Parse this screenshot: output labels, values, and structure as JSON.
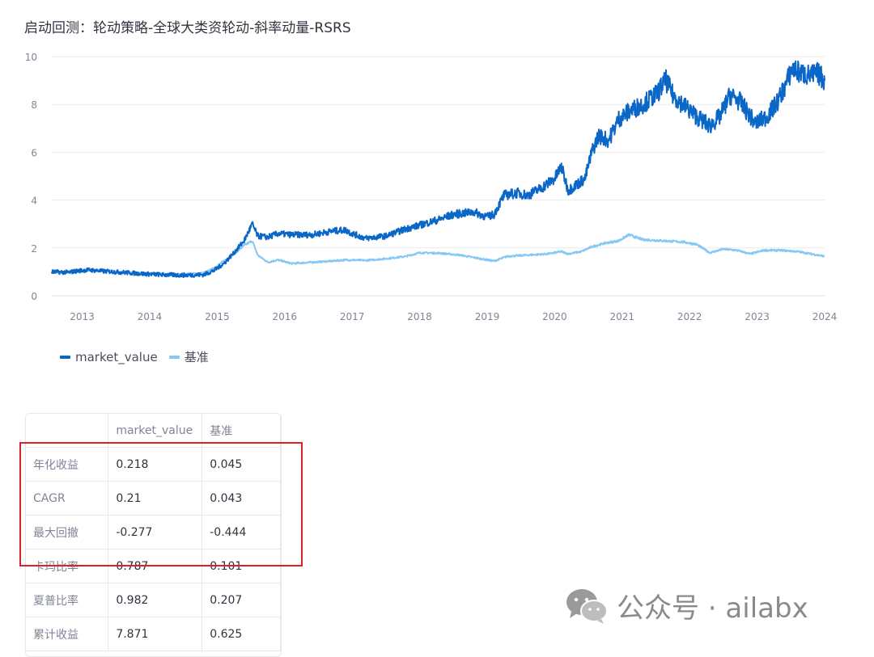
{
  "page": {
    "title": "启动回测：轮动策略-全球大类资轮动-斜率动量-RSRS"
  },
  "colors": {
    "strategy": "#0a66c7",
    "benchmark": "#85c8f5",
    "grid": "#e9eaee",
    "axis_text": "#808495"
  },
  "chart_data": {
    "type": "line",
    "title": "",
    "xlabel": "",
    "ylabel": "",
    "x_ticks": [
      "2013",
      "2014",
      "2015",
      "2016",
      "2017",
      "2018",
      "2019",
      "2020",
      "2021",
      "2022",
      "2023",
      "2024"
    ],
    "y_ticks": [
      "0",
      "2",
      "4",
      "6",
      "8",
      "10"
    ],
    "xlim": [
      2012.55,
      2024.0
    ],
    "ylim": [
      0,
      10
    ],
    "grid": true,
    "legend": "bottom-left",
    "series": [
      {
        "name": "market_value",
        "points": [
          [
            2012.55,
            1.0
          ],
          [
            2012.8,
            0.98
          ],
          [
            2012.95,
            1.05
          ],
          [
            2013.1,
            1.08
          ],
          [
            2013.3,
            1.03
          ],
          [
            2013.6,
            0.98
          ],
          [
            2013.9,
            0.92
          ],
          [
            2014.2,
            0.88
          ],
          [
            2014.5,
            0.86
          ],
          [
            2014.8,
            0.88
          ],
          [
            2014.95,
            1.05
          ],
          [
            2015.1,
            1.35
          ],
          [
            2015.25,
            1.8
          ],
          [
            2015.4,
            2.3
          ],
          [
            2015.52,
            3.0
          ],
          [
            2015.6,
            2.5
          ],
          [
            2015.75,
            2.45
          ],
          [
            2015.9,
            2.6
          ],
          [
            2016.1,
            2.55
          ],
          [
            2016.4,
            2.55
          ],
          [
            2016.7,
            2.7
          ],
          [
            2016.9,
            2.75
          ],
          [
            2017.0,
            2.6
          ],
          [
            2017.2,
            2.4
          ],
          [
            2017.5,
            2.5
          ],
          [
            2017.8,
            2.8
          ],
          [
            2018.0,
            2.95
          ],
          [
            2018.3,
            3.2
          ],
          [
            2018.5,
            3.4
          ],
          [
            2018.8,
            3.5
          ],
          [
            2019.0,
            3.3
          ],
          [
            2019.1,
            3.4
          ],
          [
            2019.25,
            4.2
          ],
          [
            2019.45,
            4.3
          ],
          [
            2019.6,
            4.2
          ],
          [
            2019.8,
            4.5
          ],
          [
            2020.0,
            4.9
          ],
          [
            2020.1,
            5.4
          ],
          [
            2020.2,
            4.4
          ],
          [
            2020.3,
            4.6
          ],
          [
            2020.45,
            4.9
          ],
          [
            2020.55,
            6.0
          ],
          [
            2020.65,
            6.7
          ],
          [
            2020.8,
            6.5
          ],
          [
            2020.95,
            7.4
          ],
          [
            2021.1,
            7.7
          ],
          [
            2021.3,
            8.0
          ],
          [
            2021.5,
            8.4
          ],
          [
            2021.65,
            9.0
          ],
          [
            2021.75,
            8.4
          ],
          [
            2021.9,
            8.0
          ],
          [
            2022.1,
            7.5
          ],
          [
            2022.3,
            7.1
          ],
          [
            2022.45,
            7.5
          ],
          [
            2022.6,
            8.4
          ],
          [
            2022.75,
            8.1
          ],
          [
            2022.9,
            7.5
          ],
          [
            2022.97,
            7.2
          ],
          [
            2023.15,
            7.5
          ],
          [
            2023.3,
            8.1
          ],
          [
            2023.42,
            8.8
          ],
          [
            2023.52,
            9.5
          ],
          [
            2023.65,
            9.3
          ],
          [
            2023.8,
            9.2
          ],
          [
            2023.9,
            9.3
          ],
          [
            2024.0,
            9.0
          ]
        ]
      },
      {
        "name": "基准",
        "points": [
          [
            2012.55,
            0.98
          ],
          [
            2012.8,
            0.97
          ],
          [
            2012.95,
            1.0
          ],
          [
            2013.1,
            1.08
          ],
          [
            2013.3,
            1.05
          ],
          [
            2013.6,
            0.98
          ],
          [
            2013.9,
            0.93
          ],
          [
            2014.2,
            0.9
          ],
          [
            2014.5,
            0.9
          ],
          [
            2014.8,
            0.95
          ],
          [
            2014.95,
            1.15
          ],
          [
            2015.1,
            1.45
          ],
          [
            2015.25,
            1.75
          ],
          [
            2015.4,
            2.1
          ],
          [
            2015.52,
            2.3
          ],
          [
            2015.6,
            1.7
          ],
          [
            2015.75,
            1.4
          ],
          [
            2015.9,
            1.5
          ],
          [
            2016.1,
            1.35
          ],
          [
            2016.4,
            1.4
          ],
          [
            2016.7,
            1.45
          ],
          [
            2016.9,
            1.5
          ],
          [
            2017.2,
            1.48
          ],
          [
            2017.5,
            1.55
          ],
          [
            2017.8,
            1.65
          ],
          [
            2018.0,
            1.8
          ],
          [
            2018.3,
            1.78
          ],
          [
            2018.6,
            1.7
          ],
          [
            2018.9,
            1.55
          ],
          [
            2019.1,
            1.45
          ],
          [
            2019.3,
            1.65
          ],
          [
            2019.6,
            1.7
          ],
          [
            2019.9,
            1.75
          ],
          [
            2020.1,
            1.85
          ],
          [
            2020.2,
            1.75
          ],
          [
            2020.4,
            1.85
          ],
          [
            2020.55,
            2.05
          ],
          [
            2020.75,
            2.2
          ],
          [
            2020.95,
            2.3
          ],
          [
            2021.1,
            2.55
          ],
          [
            2021.3,
            2.35
          ],
          [
            2021.6,
            2.3
          ],
          [
            2021.9,
            2.25
          ],
          [
            2022.1,
            2.15
          ],
          [
            2022.3,
            1.8
          ],
          [
            2022.5,
            1.95
          ],
          [
            2022.7,
            1.9
          ],
          [
            2022.9,
            1.75
          ],
          [
            2023.1,
            1.9
          ],
          [
            2023.35,
            1.9
          ],
          [
            2023.6,
            1.85
          ],
          [
            2023.8,
            1.75
          ],
          [
            2024.0,
            1.65
          ]
        ]
      }
    ]
  },
  "table": {
    "headers": [
      "",
      "market_value",
      "基准"
    ],
    "rows": [
      [
        "年化收益",
        "0.218",
        "0.045"
      ],
      [
        "CAGR",
        "0.21",
        "0.043"
      ],
      [
        "最大回撤",
        "-0.277",
        "-0.444"
      ],
      [
        "卡玛比率",
        "0.787",
        "0.101"
      ],
      [
        "夏普比率",
        "0.982",
        "0.207"
      ],
      [
        "累计收益",
        "7.871",
        "0.625"
      ]
    ]
  },
  "watermark": {
    "text": "公众号 · ailabx",
    "icon": "wechat-icon"
  }
}
